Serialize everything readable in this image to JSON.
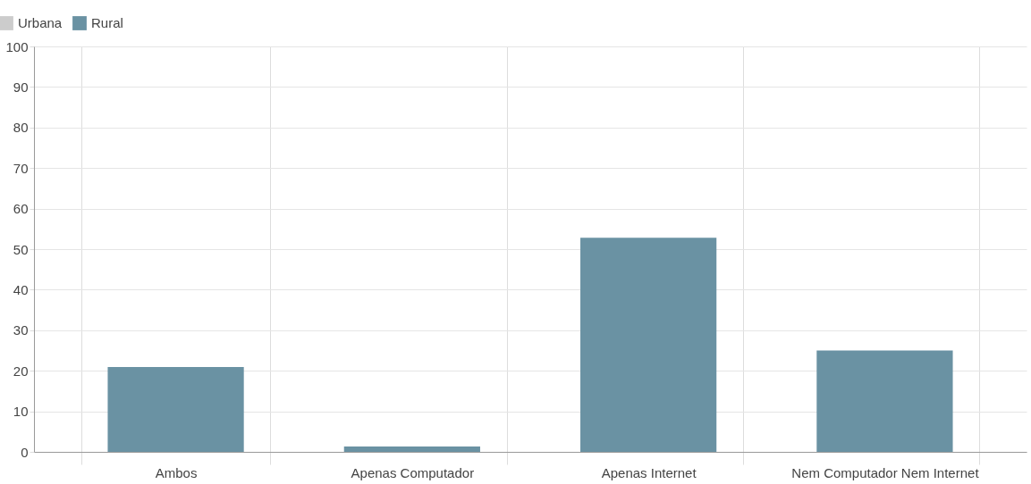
{
  "chart_data": {
    "type": "bar",
    "categories": [
      "Ambos",
      "Apenas Computador",
      "Apenas Internet",
      "Nem Computador Nem Internet"
    ],
    "series": [
      {
        "name": "Urbana",
        "color": "#cccccc",
        "values": [
          null,
          null,
          null,
          null
        ]
      },
      {
        "name": "Rural",
        "color": "#6a92a3",
        "values": [
          20.9,
          1.3,
          52.8,
          25.0
        ]
      }
    ],
    "ylim": [
      0,
      100
    ],
    "yticks": [
      0,
      10,
      20,
      30,
      40,
      50,
      60,
      70,
      80,
      90,
      100
    ],
    "grid": true,
    "legend": "top left"
  }
}
